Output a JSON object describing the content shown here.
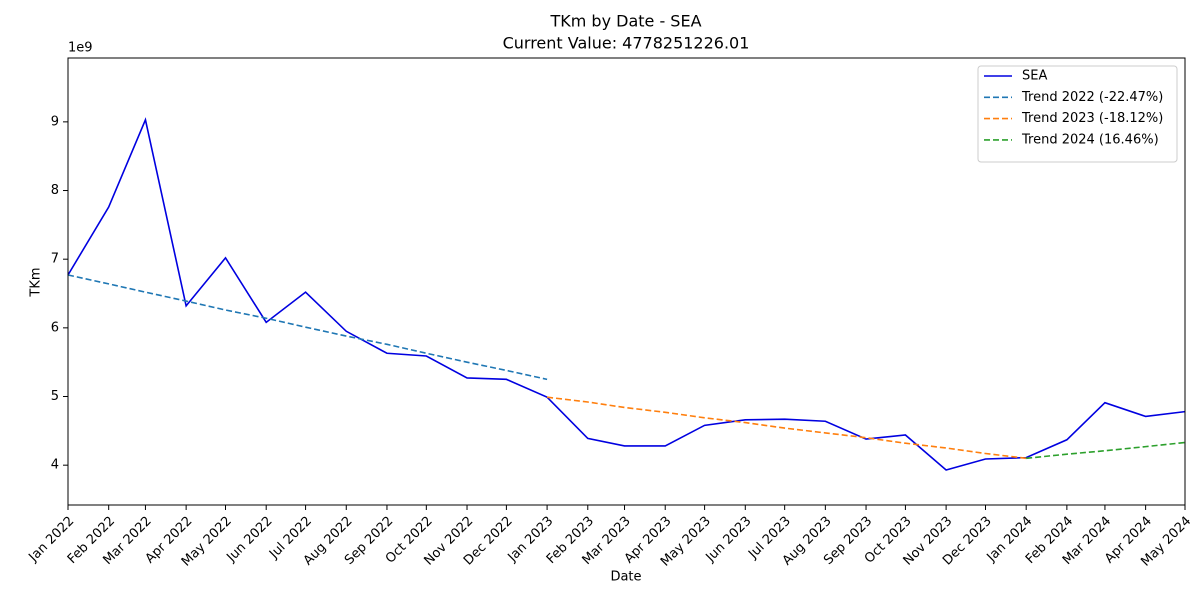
{
  "chart_data": {
    "type": "line",
    "title": "TKm by Date - SEA",
    "subtitle": "Current Value: 4778251226.01",
    "x_label": "Date",
    "y_label": "TKm",
    "y_offset_label": "1e9",
    "x": [
      "Jan 2022",
      "Feb 2022",
      "Mar 2022",
      "Apr 2022",
      "May 2022",
      "Jun 2022",
      "Jul 2022",
      "Aug 2022",
      "Sep 2022",
      "Oct 2022",
      "Nov 2022",
      "Dec 2022",
      "Jan 2023",
      "Feb 2023",
      "Mar 2023",
      "Apr 2023",
      "May 2023",
      "Jun 2023",
      "Jul 2023",
      "Aug 2023",
      "Sep 2023",
      "Oct 2023",
      "Nov 2023",
      "Dec 2023",
      "Jan 2024",
      "Feb 2024",
      "Mar 2024",
      "Apr 2024",
      "May 2024"
    ],
    "series": [
      {
        "name": "SEA",
        "color": "#0000e0",
        "dashed": false,
        "values": [
          6.77,
          7.76,
          9.03,
          6.32,
          7.02,
          6.08,
          6.52,
          5.95,
          5.63,
          5.59,
          5.27,
          5.25,
          4.99,
          4.39,
          4.28,
          4.28,
          4.58,
          4.66,
          4.67,
          4.64,
          4.38,
          4.44,
          3.93,
          4.09,
          4.11,
          4.37,
          4.91,
          4.71,
          4.78
        ]
      },
      {
        "name": "Trend 2022 (-22.47%)",
        "color": "#1f77b4",
        "dashed": true,
        "values": [
          6.77,
          6.64,
          6.52,
          6.39,
          6.26,
          6.14,
          6.01,
          5.88,
          5.76,
          5.63,
          5.5,
          5.38,
          5.25,
          null,
          null,
          null,
          null,
          null,
          null,
          null,
          null,
          null,
          null,
          null,
          null,
          null,
          null,
          null,
          null
        ]
      },
      {
        "name": "Trend 2023 (-18.12%)",
        "color": "#ff7f0e",
        "dashed": true,
        "values": [
          null,
          null,
          null,
          null,
          null,
          null,
          null,
          null,
          null,
          null,
          null,
          null,
          4.99,
          4.92,
          4.84,
          4.77,
          4.69,
          4.62,
          4.54,
          4.47,
          4.4,
          4.32,
          4.25,
          4.17,
          4.1,
          null,
          null,
          null,
          null
        ]
      },
      {
        "name": "Trend 2024 (16.46%)",
        "color": "#2ca02c",
        "dashed": true,
        "values": [
          null,
          null,
          null,
          null,
          null,
          null,
          null,
          null,
          null,
          null,
          null,
          null,
          null,
          null,
          null,
          null,
          null,
          null,
          null,
          null,
          null,
          null,
          null,
          null,
          4.1,
          4.16,
          4.21,
          4.27,
          4.33
        ]
      }
    ],
    "ylim": [
      3.42,
      9.93
    ],
    "yticks": [
      4,
      5,
      6,
      7,
      8,
      9
    ],
    "grid": false,
    "legend": "upper right"
  }
}
